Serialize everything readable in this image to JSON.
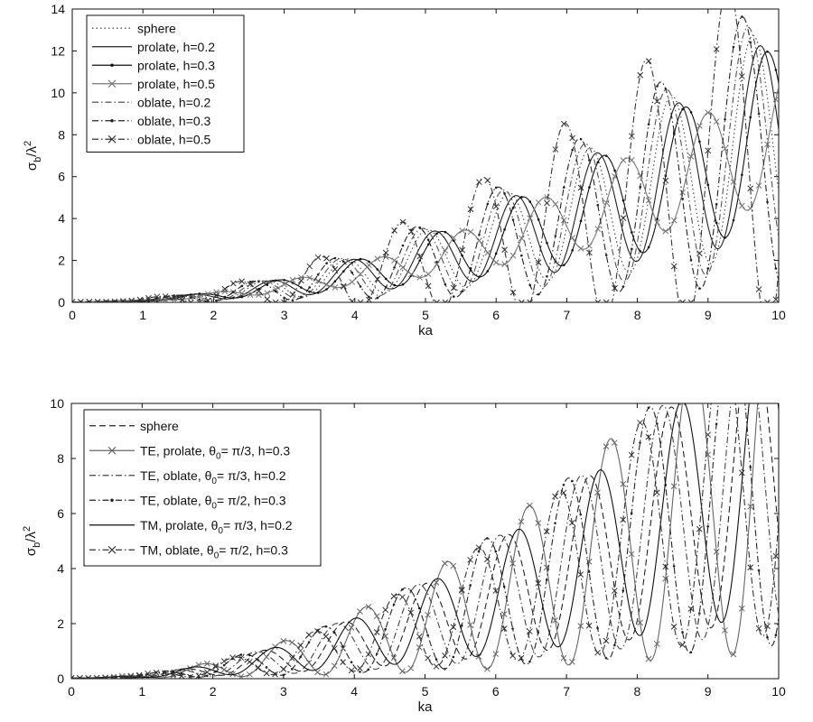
{
  "chart_data": [
    {
      "type": "line",
      "title": "",
      "xlabel": "ka",
      "ylabel": "σb/λ2",
      "ylabel_main": "σ",
      "ylabel_sub": "b",
      "ylabel_mid": "/λ",
      "ylabel_sup": "2",
      "xlim": [
        0,
        10
      ],
      "ylim": [
        0,
        14
      ],
      "xticks": [
        "0",
        "1",
        "2",
        "3",
        "4",
        "5",
        "6",
        "7",
        "8",
        "9",
        "10"
      ],
      "yticks": [
        "0",
        "2",
        "4",
        "6",
        "8",
        "10",
        "12",
        "14"
      ],
      "grid": false,
      "legend_position": "top-left",
      "series": [
        {
          "name": "sphere",
          "amp": 0.72,
          "period": 1.155,
          "phase": 0.0,
          "style": "dotted",
          "marker": "none",
          "color": "#444444"
        },
        {
          "name": "prolate, h=0.2",
          "amp": 0.62,
          "period": 1.155,
          "phase": 0.1,
          "style": "solid",
          "marker": "none",
          "color": "#222222"
        },
        {
          "name": "prolate, h=0.3",
          "amp": 0.55,
          "period": 1.155,
          "phase": 0.2,
          "style": "solid",
          "marker": "dot",
          "color": "#111111"
        },
        {
          "name": "prolate, h=0.5",
          "amp": 0.4,
          "period": 1.155,
          "phase": 0.52,
          "style": "solid",
          "marker": "x",
          "color": "#777777"
        },
        {
          "name": "oblate, h=0.2",
          "amp": 0.8,
          "period": 1.155,
          "phase": -0.07,
          "style": "dashdot",
          "marker": "none",
          "color": "#555555"
        },
        {
          "name": "oblate, h=0.3",
          "amp": 0.9,
          "period": 1.155,
          "phase": -0.15,
          "style": "dashdot",
          "marker": "dot",
          "color": "#222222"
        },
        {
          "name": "oblate, h=0.5",
          "amp": 1.2,
          "period": 1.155,
          "phase": -0.35,
          "style": "dashdot",
          "marker": "x",
          "color": "#333333"
        }
      ]
    },
    {
      "type": "line",
      "title": "",
      "xlabel": "ka",
      "ylabel": "σb/λ2",
      "ylabel_main": "σ",
      "ylabel_sub": "b",
      "ylabel_mid": "/λ",
      "ylabel_sup": "2",
      "xlim": [
        0,
        10
      ],
      "ylim": [
        0,
        10
      ],
      "xticks": [
        "0",
        "1",
        "2",
        "3",
        "4",
        "5",
        "6",
        "7",
        "8",
        "9",
        "10"
      ],
      "yticks": [
        "0",
        "2",
        "4",
        "6",
        "8",
        "10"
      ],
      "grid": false,
      "legend_position": "top-left",
      "series": [
        {
          "name": "sphere",
          "label_pre": "sphere",
          "label_sub": "",
          "label_post": "",
          "amp": 0.72,
          "period": 1.155,
          "phase": 0.0,
          "style": "dashed",
          "marker": "none",
          "color": "#222222"
        },
        {
          "name": "TE, prolate, θ0= π/3, h=0.3",
          "label_pre": "TE, prolate, θ",
          "label_sub": "0",
          "label_post": "= π/3, h=0.3",
          "amp": 0.88,
          "period": 1.155,
          "phase": 0.3,
          "style": "solid",
          "marker": "x",
          "color": "#666666"
        },
        {
          "name": "TE, oblate, θ0= π/3, h=0.2",
          "label_pre": "TE, oblate, θ",
          "label_sub": "0",
          "label_post": "= π/3, h=0.2",
          "amp": 0.78,
          "period": 1.155,
          "phase": -0.12,
          "style": "dashdot",
          "marker": "none",
          "color": "#444444"
        },
        {
          "name": "TE, oblate, θ0= π/2, h=0.3",
          "label_pre": "TE, oblate, θ",
          "label_sub": "0",
          "label_post": "= π/2, h=0.3",
          "amp": 0.85,
          "period": 1.155,
          "phase": -0.3,
          "style": "dashdot",
          "marker": "dot",
          "color": "#222222"
        },
        {
          "name": "TM, prolate, θ0= π/3, h=0.2",
          "label_pre": "TM, prolate, θ",
          "label_sub": "0",
          "label_post": "= π/3, h=0.2",
          "amp": 0.7,
          "period": 1.155,
          "phase": 0.15,
          "style": "solid",
          "marker": "none",
          "color": "#111111"
        },
        {
          "name": "TM, oblate, θ0= π/2, h=0.3",
          "label_pre": "TM, oblate, θ",
          "label_sub": "0",
          "label_post": "= π/2, h=0.3",
          "amp": 0.8,
          "period": 1.155,
          "phase": -0.42,
          "style": "dashdot",
          "marker": "x",
          "color": "#333333"
        }
      ]
    }
  ]
}
